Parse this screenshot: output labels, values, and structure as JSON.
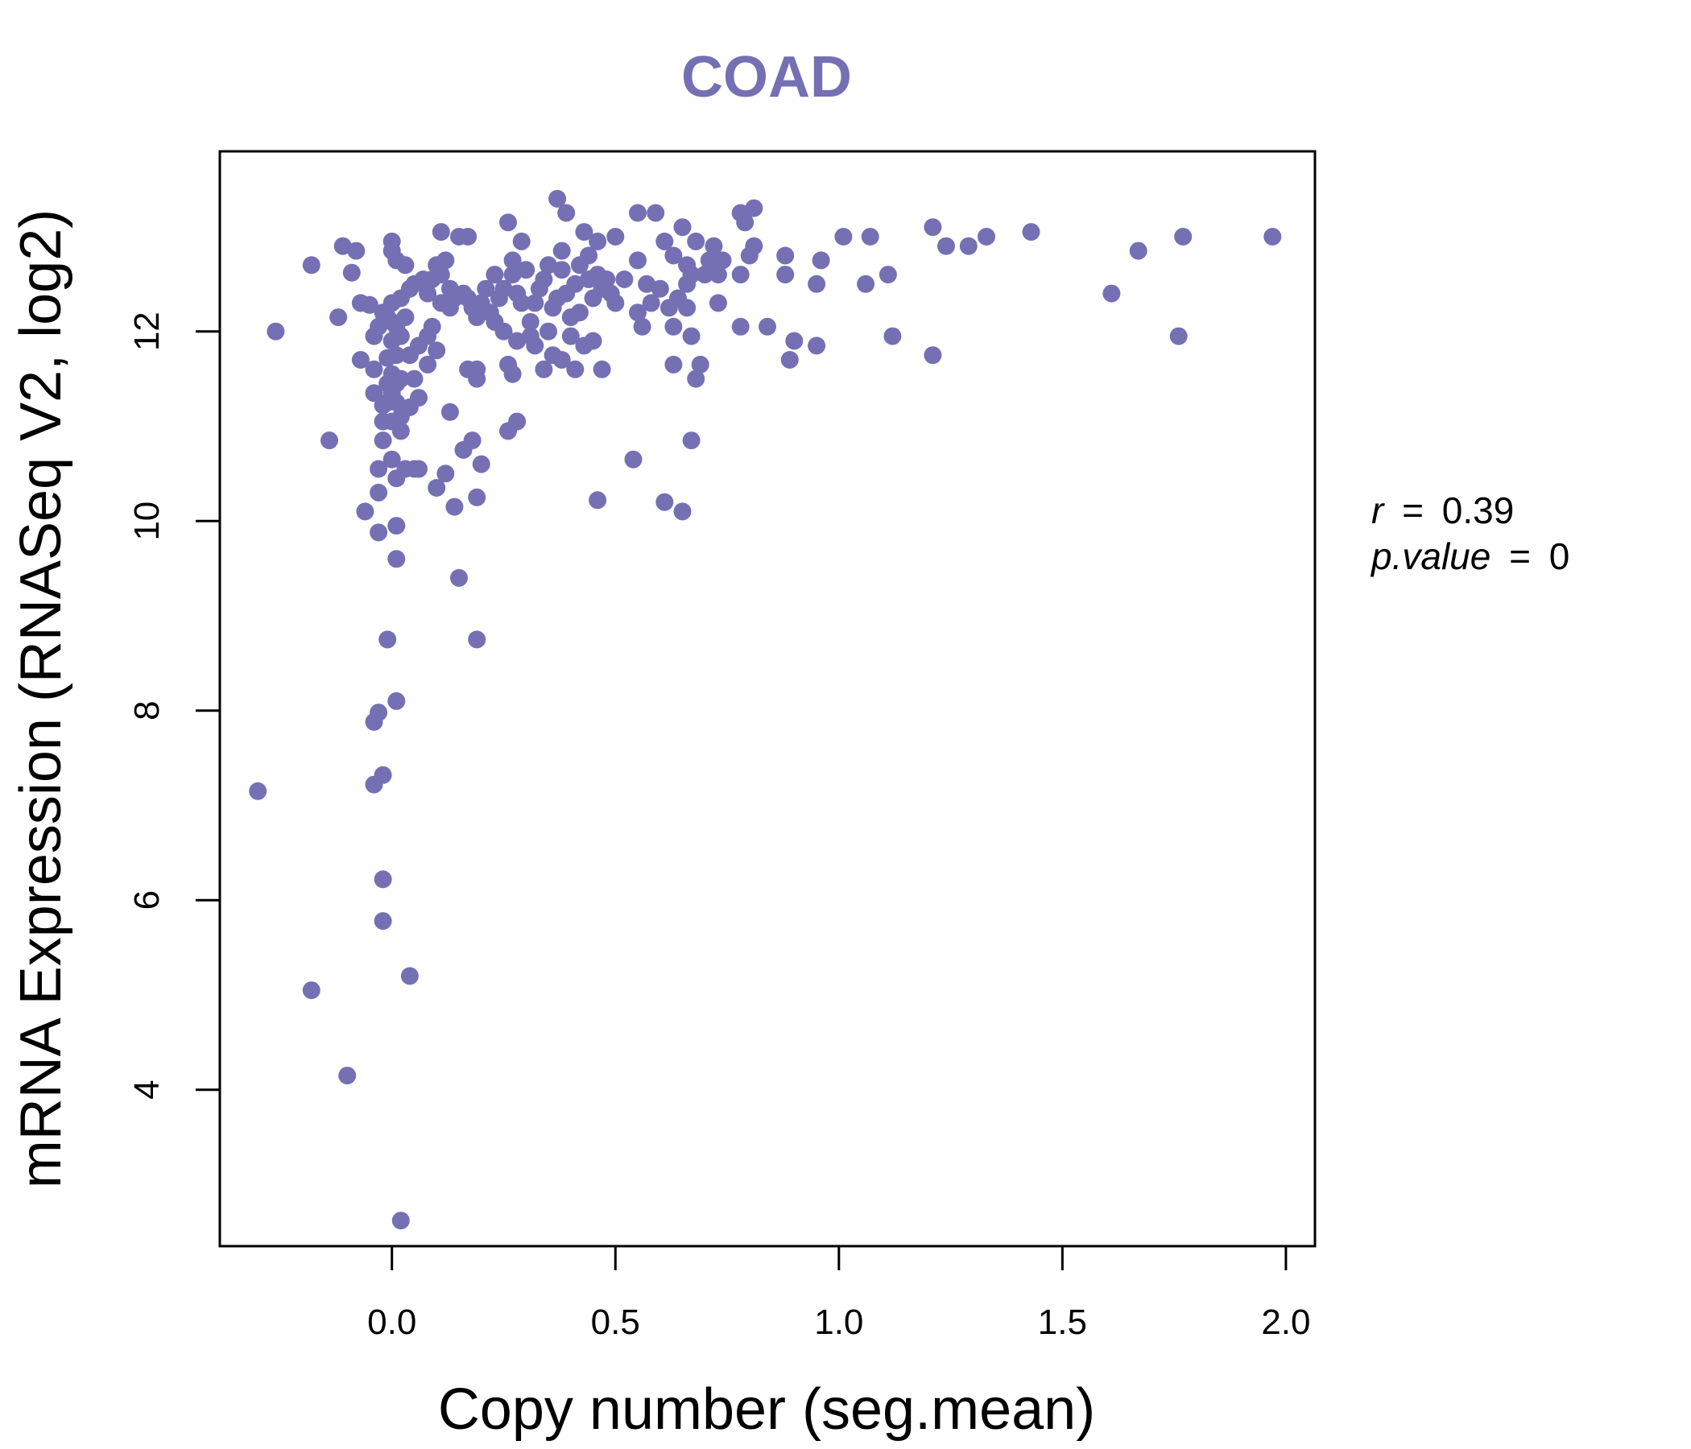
{
  "chart_data": {
    "type": "scatter",
    "title": "COAD",
    "xlabel": "Copy number (seg.mean)",
    "ylabel": "mRNA Expression (RNASeq V2, log2)",
    "xlim": [
      -0.385,
      2.065
    ],
    "ylim": [
      2.35,
      13.9
    ],
    "x_ticks": [
      0.0,
      0.5,
      1.0,
      1.5,
      2.0
    ],
    "x_tick_labels": [
      "0.0",
      "0.5",
      "1.0",
      "1.5",
      "2.0"
    ],
    "y_ticks": [
      4,
      6,
      8,
      10,
      12
    ],
    "y_tick_labels": [
      "4",
      "6",
      "8",
      "10",
      "12"
    ],
    "grid": false,
    "legend": "none",
    "point_color": "#7570b3",
    "annotation": {
      "r_label": "r",
      "r_value": "0.39",
      "p_label": "p.value",
      "p_value": "0",
      "equals": "="
    },
    "points": [
      [
        -0.3,
        7.15
      ],
      [
        -0.26,
        12.0
      ],
      [
        -0.18,
        12.7
      ],
      [
        -0.18,
        5.05
      ],
      [
        -0.14,
        10.85
      ],
      [
        -0.12,
        12.15
      ],
      [
        -0.11,
        12.9
      ],
      [
        -0.1,
        4.15
      ],
      [
        -0.09,
        12.62
      ],
      [
        -0.08,
        12.85
      ],
      [
        -0.07,
        11.7
      ],
      [
        -0.07,
        12.3
      ],
      [
        -0.06,
        10.1
      ],
      [
        -0.05,
        12.28
      ],
      [
        -0.04,
        7.22
      ],
      [
        -0.04,
        11.95
      ],
      [
        -0.04,
        7.88
      ],
      [
        -0.04,
        11.6
      ],
      [
        -0.04,
        11.35
      ],
      [
        -0.03,
        10.55
      ],
      [
        -0.03,
        9.88
      ],
      [
        -0.03,
        10.3
      ],
      [
        -0.03,
        7.98
      ],
      [
        -0.03,
        12.05
      ],
      [
        -0.02,
        11.05
      ],
      [
        -0.02,
        11.22
      ],
      [
        -0.02,
        12.2
      ],
      [
        -0.02,
        7.32
      ],
      [
        -0.02,
        6.22
      ],
      [
        -0.02,
        5.78
      ],
      [
        -0.02,
        10.85
      ],
      [
        -0.01,
        11.45
      ],
      [
        -0.01,
        11.25
      ],
      [
        -0.01,
        12.15
      ],
      [
        -0.01,
        11.72
      ],
      [
        -0.01,
        8.75
      ],
      [
        0.0,
        12.85
      ],
      [
        0.0,
        12.3
      ],
      [
        0.0,
        11.55
      ],
      [
        0.0,
        10.65
      ],
      [
        0.0,
        11.35
      ],
      [
        0.0,
        12.95
      ],
      [
        0.0,
        11.9
      ],
      [
        0.0,
        11.05
      ],
      [
        0.0,
        12.1
      ],
      [
        0.01,
        9.95
      ],
      [
        0.01,
        9.6
      ],
      [
        0.01,
        11.75
      ],
      [
        0.01,
        11.45
      ],
      [
        0.01,
        12.05
      ],
      [
        0.01,
        10.45
      ],
      [
        0.01,
        12.75
      ],
      [
        0.01,
        11.25
      ],
      [
        0.01,
        8.1
      ],
      [
        0.02,
        2.62
      ],
      [
        0.02,
        11.95
      ],
      [
        0.02,
        12.35
      ],
      [
        0.02,
        11.1
      ],
      [
        0.02,
        10.95
      ],
      [
        0.02,
        11.5
      ],
      [
        0.03,
        12.7
      ],
      [
        0.03,
        10.55
      ],
      [
        0.03,
        12.15
      ],
      [
        0.04,
        12.45
      ],
      [
        0.04,
        11.2
      ],
      [
        0.04,
        11.75
      ],
      [
        0.04,
        5.2
      ],
      [
        0.05,
        11.5
      ],
      [
        0.05,
        12.5
      ],
      [
        0.05,
        10.55
      ],
      [
        0.06,
        11.3
      ],
      [
        0.06,
        11.85
      ],
      [
        0.06,
        10.55
      ],
      [
        0.07,
        12.55
      ],
      [
        0.08,
        11.95
      ],
      [
        0.08,
        11.65
      ],
      [
        0.08,
        12.4
      ],
      [
        0.09,
        12.05
      ],
      [
        0.09,
        12.55
      ],
      [
        0.1,
        10.35
      ],
      [
        0.1,
        12.7
      ],
      [
        0.1,
        11.8
      ],
      [
        0.11,
        12.6
      ],
      [
        0.11,
        13.05
      ],
      [
        0.11,
        12.3
      ],
      [
        0.12,
        12.75
      ],
      [
        0.12,
        10.5
      ],
      [
        0.13,
        11.15
      ],
      [
        0.13,
        12.45
      ],
      [
        0.13,
        12.25
      ],
      [
        0.14,
        10.15
      ],
      [
        0.14,
        12.35
      ],
      [
        0.15,
        9.4
      ],
      [
        0.15,
        13.0
      ],
      [
        0.16,
        12.4
      ],
      [
        0.16,
        10.75
      ],
      [
        0.17,
        13.0
      ],
      [
        0.17,
        11.6
      ],
      [
        0.17,
        12.35
      ],
      [
        0.18,
        12.25
      ],
      [
        0.18,
        10.85
      ],
      [
        0.19,
        11.5
      ],
      [
        0.19,
        10.25
      ],
      [
        0.19,
        8.75
      ],
      [
        0.19,
        12.15
      ],
      [
        0.19,
        11.6
      ],
      [
        0.2,
        10.6
      ],
      [
        0.2,
        12.3
      ],
      [
        0.21,
        12.45
      ],
      [
        0.22,
        12.2
      ],
      [
        0.23,
        12.6
      ],
      [
        0.23,
        12.1
      ],
      [
        0.24,
        12.35
      ],
      [
        0.25,
        12.0
      ],
      [
        0.25,
        12.45
      ],
      [
        0.26,
        11.65
      ],
      [
        0.26,
        10.95
      ],
      [
        0.26,
        13.15
      ],
      [
        0.27,
        12.75
      ],
      [
        0.27,
        12.6
      ],
      [
        0.27,
        11.55
      ],
      [
        0.28,
        11.05
      ],
      [
        0.28,
        11.9
      ],
      [
        0.28,
        12.4
      ],
      [
        0.29,
        12.95
      ],
      [
        0.29,
        12.3
      ],
      [
        0.3,
        12.65
      ],
      [
        0.31,
        11.95
      ],
      [
        0.31,
        12.1
      ],
      [
        0.32,
        12.3
      ],
      [
        0.32,
        11.85
      ],
      [
        0.33,
        12.45
      ],
      [
        0.34,
        11.6
      ],
      [
        0.34,
        12.55
      ],
      [
        0.35,
        12.0
      ],
      [
        0.35,
        12.7
      ],
      [
        0.36,
        11.75
      ],
      [
        0.36,
        12.25
      ],
      [
        0.37,
        13.4
      ],
      [
        0.37,
        12.35
      ],
      [
        0.38,
        12.85
      ],
      [
        0.38,
        11.7
      ],
      [
        0.38,
        12.65
      ],
      [
        0.39,
        13.25
      ],
      [
        0.39,
        12.4
      ],
      [
        0.4,
        12.15
      ],
      [
        0.4,
        11.95
      ],
      [
        0.41,
        11.6
      ],
      [
        0.41,
        12.5
      ],
      [
        0.42,
        12.2
      ],
      [
        0.42,
        12.7
      ],
      [
        0.43,
        11.85
      ],
      [
        0.43,
        13.05
      ],
      [
        0.44,
        12.55
      ],
      [
        0.44,
        12.8
      ],
      [
        0.45,
        12.35
      ],
      [
        0.45,
        11.9
      ],
      [
        0.46,
        12.6
      ],
      [
        0.46,
        12.95
      ],
      [
        0.46,
        10.22
      ],
      [
        0.47,
        11.6
      ],
      [
        0.47,
        12.45
      ],
      [
        0.48,
        12.55
      ],
      [
        0.49,
        12.4
      ],
      [
        0.5,
        13.0
      ],
      [
        0.5,
        12.3
      ],
      [
        0.52,
        12.55
      ],
      [
        0.54,
        10.65
      ],
      [
        0.55,
        13.25
      ],
      [
        0.55,
        12.2
      ],
      [
        0.55,
        12.75
      ],
      [
        0.56,
        12.05
      ],
      [
        0.57,
        12.5
      ],
      [
        0.58,
        12.3
      ],
      [
        0.59,
        13.25
      ],
      [
        0.6,
        12.45
      ],
      [
        0.61,
        12.95
      ],
      [
        0.61,
        10.2
      ],
      [
        0.62,
        12.25
      ],
      [
        0.63,
        12.8
      ],
      [
        0.63,
        11.65
      ],
      [
        0.63,
        12.05
      ],
      [
        0.64,
        12.35
      ],
      [
        0.65,
        13.1
      ],
      [
        0.65,
        10.1
      ],
      [
        0.66,
        12.7
      ],
      [
        0.66,
        12.5
      ],
      [
        0.66,
        12.25
      ],
      [
        0.67,
        10.85
      ],
      [
        0.67,
        11.95
      ],
      [
        0.67,
        12.6
      ],
      [
        0.68,
        11.5
      ],
      [
        0.68,
        12.95
      ],
      [
        0.69,
        11.65
      ],
      [
        0.7,
        12.6
      ],
      [
        0.71,
        12.75
      ],
      [
        0.72,
        12.9
      ],
      [
        0.73,
        12.3
      ],
      [
        0.73,
        12.6
      ],
      [
        0.74,
        12.75
      ],
      [
        0.78,
        12.6
      ],
      [
        0.78,
        13.25
      ],
      [
        0.78,
        12.05
      ],
      [
        0.79,
        13.15
      ],
      [
        0.8,
        12.8
      ],
      [
        0.81,
        13.3
      ],
      [
        0.81,
        12.9
      ],
      [
        0.84,
        12.05
      ],
      [
        0.88,
        12.8
      ],
      [
        0.88,
        12.6
      ],
      [
        0.89,
        11.7
      ],
      [
        0.9,
        11.9
      ],
      [
        0.95,
        11.85
      ],
      [
        0.95,
        12.5
      ],
      [
        0.96,
        12.75
      ],
      [
        1.01,
        13.0
      ],
      [
        1.06,
        12.5
      ],
      [
        1.07,
        13.0
      ],
      [
        1.11,
        12.6
      ],
      [
        1.12,
        11.95
      ],
      [
        1.21,
        13.1
      ],
      [
        1.21,
        11.75
      ],
      [
        1.24,
        12.9
      ],
      [
        1.29,
        12.9
      ],
      [
        1.33,
        13.0
      ],
      [
        1.43,
        13.05
      ],
      [
        1.61,
        12.4
      ],
      [
        1.67,
        12.85
      ],
      [
        1.76,
        11.95
      ],
      [
        1.77,
        13.0
      ],
      [
        1.97,
        13.0
      ]
    ]
  }
}
